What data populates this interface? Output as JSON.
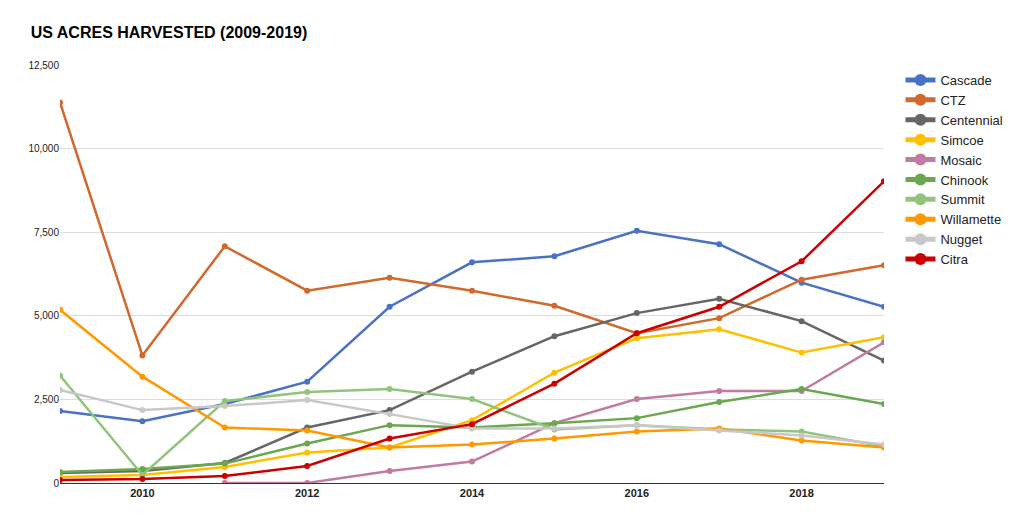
{
  "chart_data": {
    "type": "line",
    "title": "US ACRES HARVESTED (2009-2019)",
    "x": [
      2009,
      2010,
      2011,
      2012,
      2013,
      2014,
      2015,
      2016,
      2017,
      2018,
      2019
    ],
    "xlim": [
      2009,
      2019
    ],
    "xticks": [
      2010,
      2012,
      2014,
      2016,
      2018
    ],
    "ylim": [
      0,
      12500
    ],
    "yticks": [
      0,
      {
        "value": 2500,
        "label": "2,500"
      },
      {
        "value": 5000,
        "label": "5,000"
      },
      {
        "value": 7500,
        "label": "7,500"
      },
      {
        "value": 10000,
        "label": "10,000"
      },
      {
        "value": 12500,
        "label": "12,500"
      }
    ],
    "grid": true,
    "legend": "right",
    "marker": "circle",
    "series": [
      {
        "name": "Cascade",
        "color": "#4a72c4",
        "values": [
          2150,
          1850,
          2360,
          3030,
          5270,
          6600,
          6780,
          7540,
          7140,
          5990,
          5270
        ]
      },
      {
        "name": "CTZ",
        "color": "#d0692b",
        "values": [
          11380,
          3810,
          7080,
          5750,
          6140,
          5750,
          5300,
          4480,
          4930,
          6080,
          6510
        ]
      },
      {
        "name": "Centennial",
        "color": "#666666",
        "values": [
          300,
          360,
          600,
          1660,
          2180,
          3330,
          4390,
          5080,
          5510,
          4840,
          3660
        ]
      },
      {
        "name": "Simcoe",
        "color": "#ffc000",
        "values": [
          180,
          240,
          480,
          910,
          1060,
          1880,
          3300,
          4330,
          4600,
          3900,
          4360
        ]
      },
      {
        "name": "Mosaic",
        "color": "#c27ba0",
        "values": [
          null,
          null,
          0,
          0,
          360,
          640,
          1790,
          2510,
          2750,
          2750,
          4210
        ]
      },
      {
        "name": "Chinook",
        "color": "#6aa84f",
        "values": [
          330,
          420,
          580,
          1180,
          1730,
          1660,
          1790,
          1940,
          2420,
          2810,
          2360
        ]
      },
      {
        "name": "Summit",
        "color": "#93c47d",
        "values": [
          3210,
          240,
          2450,
          2720,
          2810,
          2510,
          1600,
          1730,
          1600,
          1540,
          1090
        ]
      },
      {
        "name": "Willamette",
        "color": "#ff9900",
        "values": [
          5180,
          3180,
          1660,
          1570,
          1060,
          1150,
          1330,
          1540,
          1630,
          1270,
          1060
        ]
      },
      {
        "name": "Nugget",
        "color": "#c8c8c8",
        "values": [
          2780,
          2180,
          2300,
          2480,
          2060,
          1630,
          1630,
          1730,
          1570,
          1420,
          1150
        ]
      },
      {
        "name": "Citra",
        "color": "#cc0000",
        "values": [
          90,
          120,
          210,
          510,
          1330,
          1760,
          2970,
          4480,
          5270,
          6630,
          9020
        ]
      }
    ]
  }
}
